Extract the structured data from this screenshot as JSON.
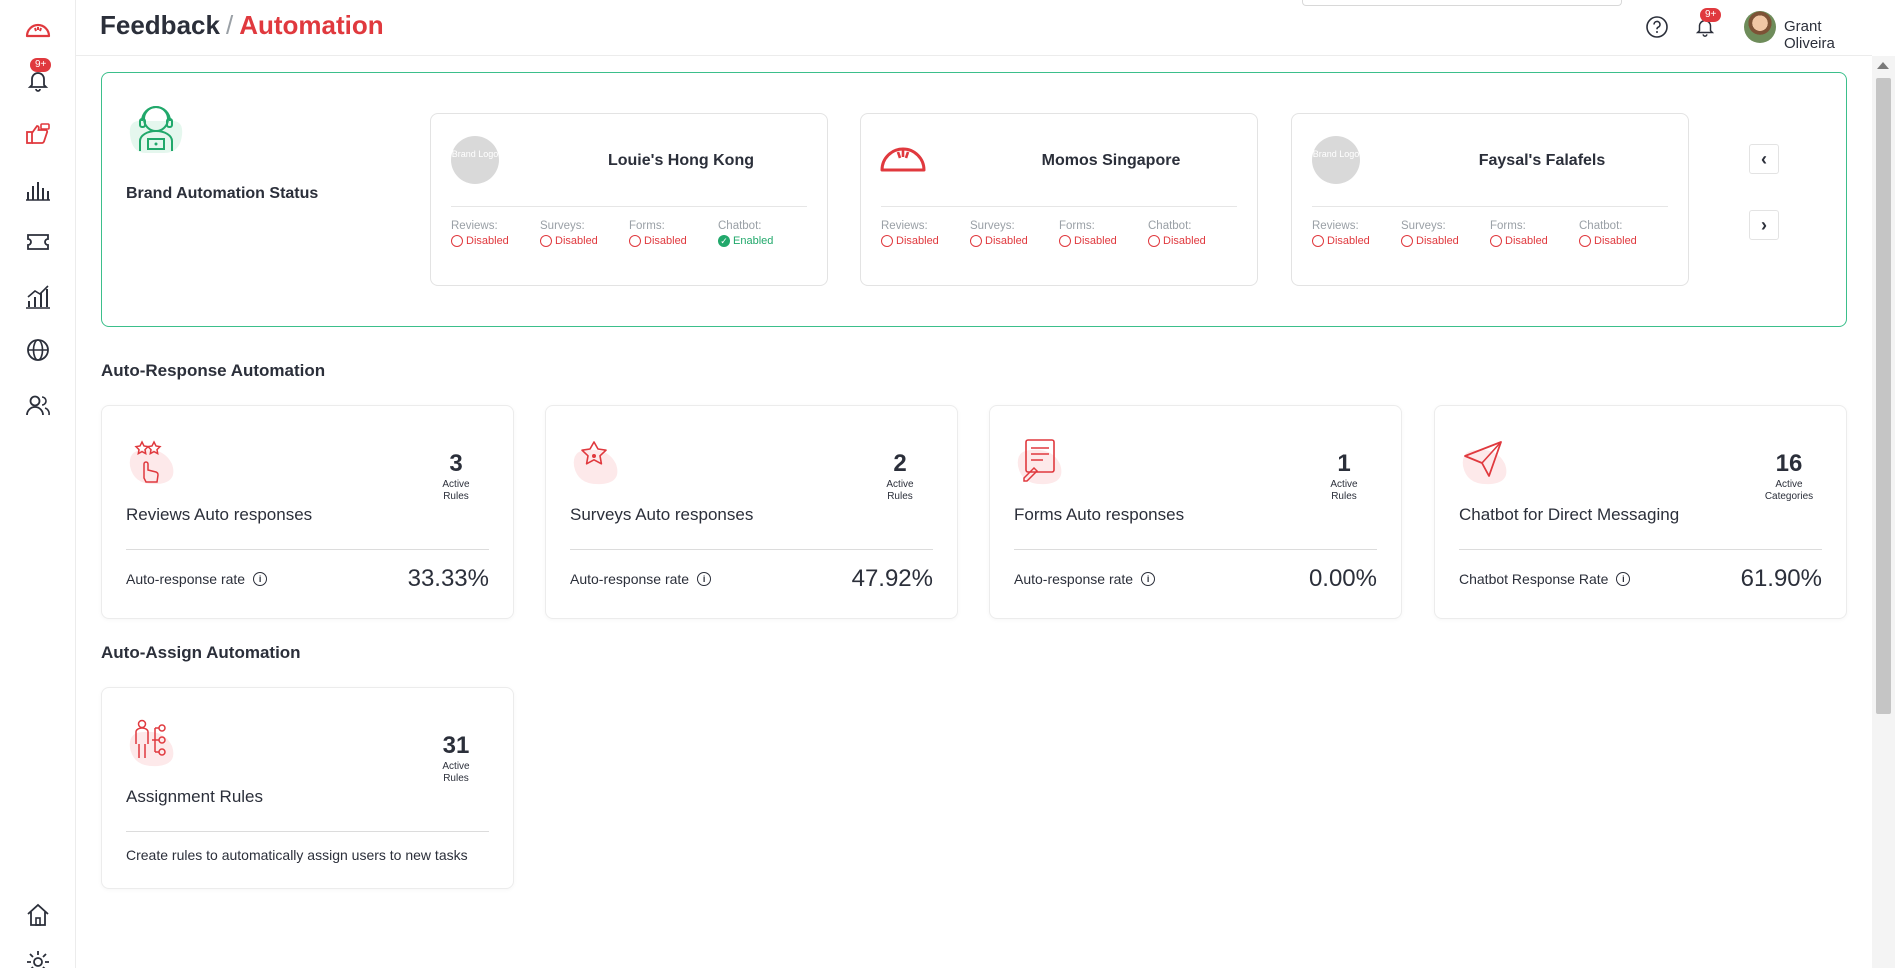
{
  "header": {
    "breadcrumb_parent": "Feedback",
    "breadcrumb_sep": "/",
    "breadcrumb_current": "Automation",
    "notifications_badge": "9+",
    "user_name": "Grant Oliveira"
  },
  "sidebar": {
    "notifications_badge": "9+",
    "items": [
      {
        "name": "momos-logo-icon"
      },
      {
        "name": "notifications-icon"
      },
      {
        "name": "feedback-icon"
      },
      {
        "name": "analytics-icon"
      },
      {
        "name": "tickets-icon"
      },
      {
        "name": "growth-chart-icon"
      },
      {
        "name": "globe-icon"
      },
      {
        "name": "users-icon"
      },
      {
        "name": "home-icon"
      },
      {
        "name": "settings-icon"
      }
    ]
  },
  "brand_status": {
    "title": "Brand Automation Status",
    "placeholder_logo_text": "Brand Logo",
    "labels": {
      "reviews": "Reviews:",
      "surveys": "Surveys:",
      "forms": "Forms:",
      "chatbot": "Chatbot:"
    },
    "brands": [
      {
        "name": "Louie's Hong Kong",
        "reviews": "Disabled",
        "surveys": "Disabled",
        "forms": "Disabled",
        "chatbot": "Enabled"
      },
      {
        "name": "Momos Singapore",
        "reviews": "Disabled",
        "surveys": "Disabled",
        "forms": "Disabled",
        "chatbot": "Disabled"
      },
      {
        "name": "Faysal's Falafels",
        "reviews": "Disabled",
        "surveys": "Disabled",
        "forms": "Disabled",
        "chatbot": "Disabled"
      }
    ],
    "prev_arrow": "‹",
    "next_arrow": "›"
  },
  "auto_response": {
    "title": "Auto-Response Automation",
    "cards": [
      {
        "title": "Reviews Auto responses",
        "count": "3",
        "count_label_1": "Active",
        "count_label_2": "Rules",
        "rate_label": "Auto-response rate",
        "rate": "33.33%",
        "icon": "star-hand-icon"
      },
      {
        "title": "Surveys Auto responses",
        "count": "2",
        "count_label_1": "Active",
        "count_label_2": "Rules",
        "rate_label": "Auto-response rate",
        "rate": "47.92%",
        "icon": "survey-star-icon"
      },
      {
        "title": "Forms Auto responses",
        "count": "1",
        "count_label_1": "Active",
        "count_label_2": "Rules",
        "rate_label": "Auto-response rate",
        "rate": "0.00%",
        "icon": "form-icon"
      },
      {
        "title": "Chatbot for Direct Messaging",
        "count": "16",
        "count_label_1": "Active",
        "count_label_2": "Categories",
        "rate_label": "Chatbot Response Rate",
        "rate": "61.90%",
        "icon": "paper-plane-icon"
      }
    ]
  },
  "auto_assign": {
    "title": "Auto-Assign Automation",
    "card": {
      "title": "Assignment Rules",
      "count": "31",
      "count_label_1": "Active",
      "count_label_2": "Rules",
      "description": "Create rules to automatically assign users to new tasks",
      "icon": "assignment-icon"
    }
  },
  "colors": {
    "accent": "#e0393e",
    "success": "#21a86b",
    "panel_border": "#3bbf8b",
    "text": "#2b2f3a"
  }
}
